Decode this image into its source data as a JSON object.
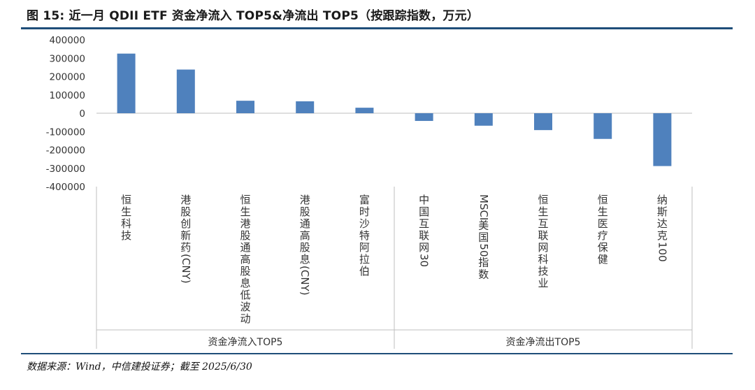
{
  "header": {
    "title": "图 15: 近一月 QDII ETF 资金净流入 TOP5&净流出 TOP5（按跟踪指数，万元）"
  },
  "footer": {
    "source": "数据来源：Wind，中信建投证券；截至 2025/6/30"
  },
  "colors": {
    "bar": "#4f81bd",
    "axis": "#bfbfbf",
    "tick_text": "#333333",
    "rule": "#1f4e79"
  },
  "chart_data": {
    "type": "bar",
    "title": "近一月 QDII ETF 资金净流入 TOP5&净流出 TOP5（按跟踪指数，万元）",
    "ylim": [
      -400000,
      400000
    ],
    "y_ticks": [
      "400000",
      "300000",
      "200000",
      "100000",
      "0",
      "-100000",
      "-200000",
      "-300000",
      "-400000"
    ],
    "y_tick_values": [
      400000,
      300000,
      200000,
      100000,
      0,
      -100000,
      -200000,
      -300000,
      -400000
    ],
    "categories": [
      "恒生科技",
      "港股创新药(CNY)",
      "恒生港股通高股息低波动",
      "港股通高股息(CNY)",
      "富时沙特阿拉伯",
      "中国互联网30",
      "MSCI美国50指数",
      "恒生互联网科技业",
      "恒生医疗保健",
      "纳斯达克100"
    ],
    "values": [
      325000,
      238000,
      68000,
      65000,
      30000,
      -42000,
      -68000,
      -92000,
      -140000,
      -288000
    ],
    "groups": [
      {
        "label": "资金净流入TOP5",
        "count": 5
      },
      {
        "label": "资金净流出TOP5",
        "count": 5
      }
    ]
  }
}
